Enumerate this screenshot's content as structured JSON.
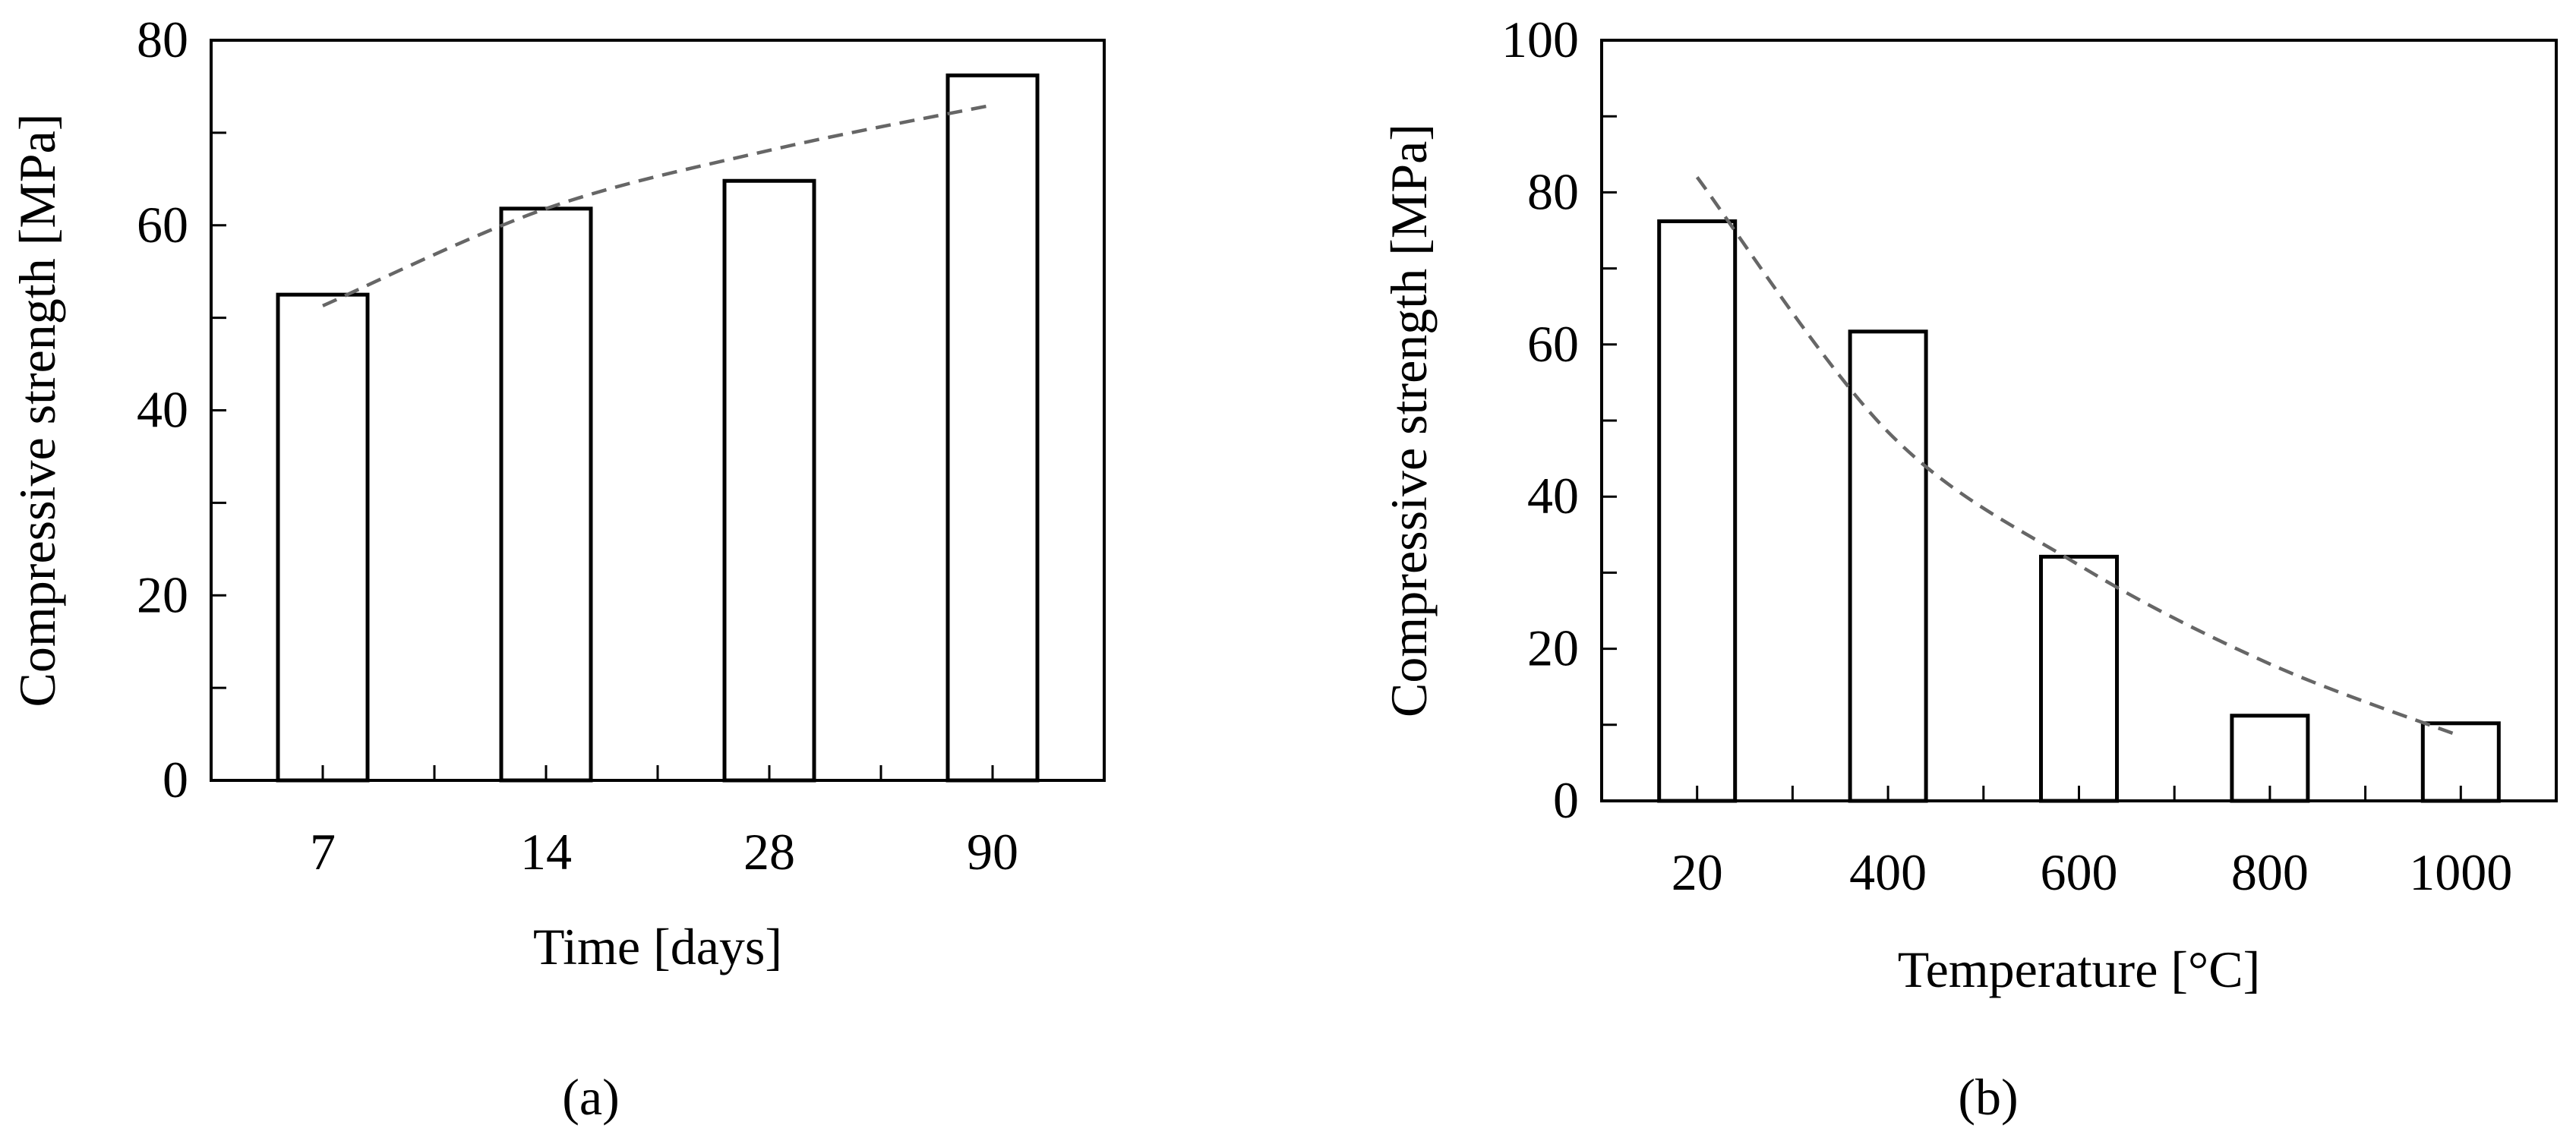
{
  "chart_data": [
    {
      "type": "bar",
      "panel_label": "(a)",
      "categories": [
        "7",
        "14",
        "28",
        "90"
      ],
      "values": [
        52.5,
        61.8,
        64.8,
        76.2
      ],
      "trendline": {
        "style": "dashed",
        "color": "#666666",
        "x": [
          "7",
          "14",
          "28",
          "90"
        ],
        "y": [
          51.3,
          61.8,
          68.1,
          73.0
        ]
      },
      "title": "",
      "xlabel": "Time [days]",
      "ylabel": "Compressive strength [MPa]",
      "ylim": [
        0,
        80
      ],
      "yticks": [
        0,
        20,
        40,
        60,
        80
      ],
      "grid": false,
      "legend": "none",
      "bar_fill": "#ffffff",
      "bar_edge": "#000000"
    },
    {
      "type": "bar",
      "panel_label": "(b)",
      "categories": [
        "20",
        "400",
        "600",
        "800",
        "1000"
      ],
      "values": [
        76.2,
        61.7,
        32.1,
        11.2,
        10.2
      ],
      "trendline": {
        "style": "dashed",
        "color": "#666666",
        "x": [
          "20",
          "400",
          "600",
          "800",
          "1000"
        ],
        "y": [
          82.0,
          48.5,
          31.0,
          18.0,
          8.5
        ]
      },
      "title": "",
      "xlabel": "Temperature [°C]",
      "ylabel": "Compressive strength [MPa]",
      "ylim": [
        0,
        100
      ],
      "yticks": [
        0,
        20,
        40,
        60,
        80,
        100
      ],
      "grid": false,
      "legend": "none",
      "bar_fill": "#ffffff",
      "bar_edge": "#000000"
    }
  ]
}
